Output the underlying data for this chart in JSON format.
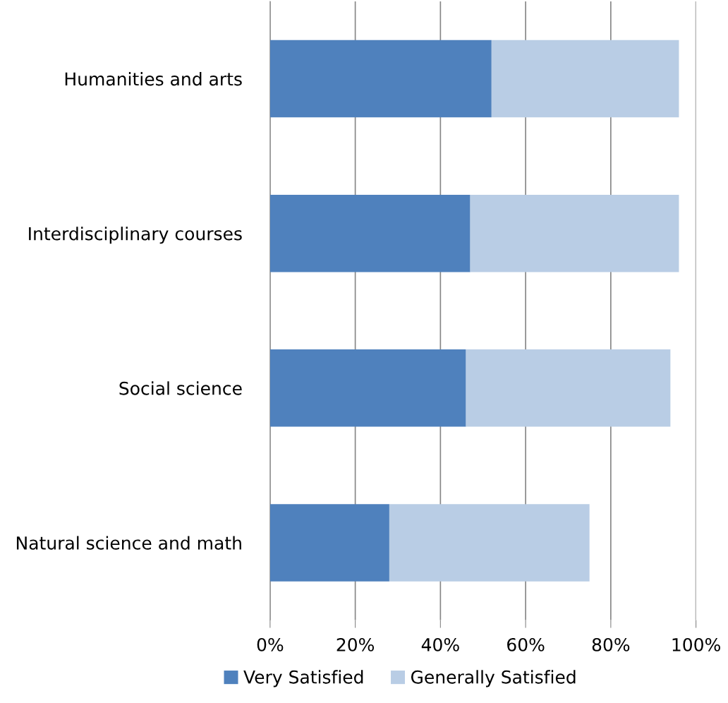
{
  "chart_data": {
    "type": "bar",
    "orientation": "horizontal",
    "stacked": true,
    "categories": [
      "Humanities and arts",
      "Interdisciplinary courses",
      "Social science",
      "Natural science and math"
    ],
    "series": [
      {
        "name": "Very Satisfied",
        "color": "#4f81bd",
        "values": [
          52,
          47,
          46,
          28
        ]
      },
      {
        "name": "Generally Satisfied",
        "color": "#b9cde5",
        "values": [
          44,
          49,
          48,
          47
        ]
      }
    ],
    "xlim": [
      0,
      100
    ],
    "xticks": [
      {
        "value": 0,
        "label": "0%"
      },
      {
        "value": 20,
        "label": "20%"
      },
      {
        "value": 40,
        "label": "40%"
      },
      {
        "value": 60,
        "label": "60%"
      },
      {
        "value": 80,
        "label": "80%"
      },
      {
        "value": 100,
        "label": "100%"
      }
    ],
    "grid": "x",
    "legend": "bottom"
  }
}
